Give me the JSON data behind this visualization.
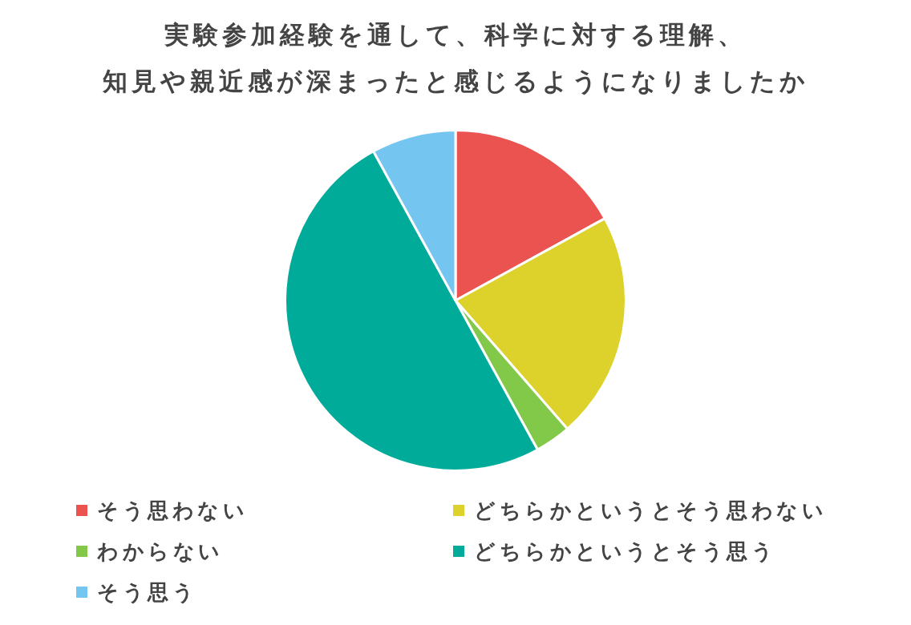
{
  "chart_data": {
    "type": "pie",
    "title": "実験参加経験を通して、科学に対する理解、知見や親近感が深まったと感じるようになりましたか",
    "categories": [
      "そう思わない",
      "どちらかというとそう思わない",
      "わからない",
      "どちらかというとそう思う",
      "そう思う"
    ],
    "values": [
      17,
      21.6,
      3.4,
      50,
      8
    ],
    "colors": [
      "#eb5350",
      "#ddd22b",
      "#82c94a",
      "#00ab99",
      "#74c5ef"
    ],
    "legend": "bottom"
  }
}
